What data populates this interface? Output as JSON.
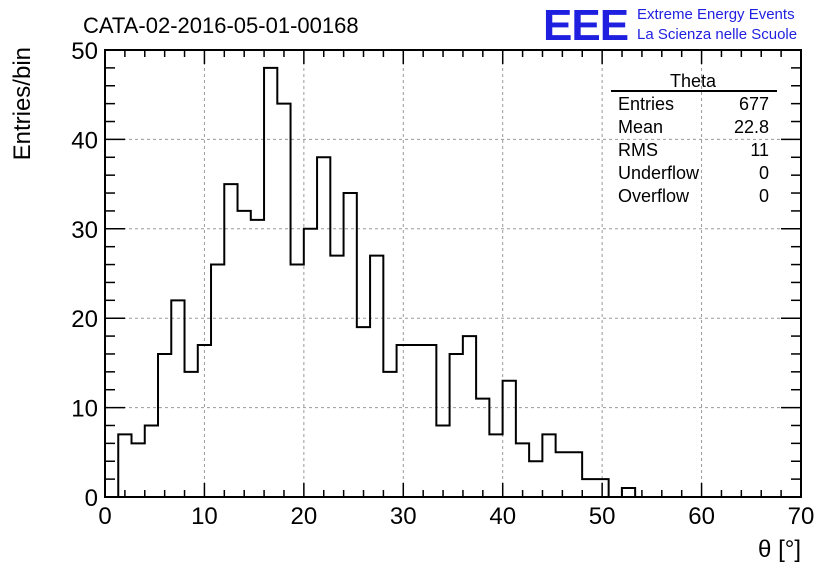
{
  "chart_data": {
    "type": "histogram",
    "title": "CATA-02-2016-05-01-00168",
    "xlabel": "θ [°]",
    "ylabel": "Entries/bin",
    "xlim": [
      0,
      70
    ],
    "ylim": [
      0,
      50
    ],
    "x_ticks": [
      "0",
      "10",
      "20",
      "30",
      "40",
      "50",
      "60",
      "70"
    ],
    "y_ticks": [
      "0",
      "10",
      "20",
      "30",
      "40",
      "50"
    ],
    "grid": true,
    "bin_width": 1.333,
    "bin_start": 1.333,
    "values": [
      7,
      6,
      8,
      16,
      22,
      14,
      17,
      26,
      35,
      32,
      31,
      48,
      44,
      26,
      30,
      38,
      27,
      34,
      19,
      27,
      14,
      17,
      17,
      17,
      8,
      16,
      18,
      11,
      7,
      13,
      6,
      4,
      7,
      5,
      5,
      2,
      2,
      0,
      1
    ]
  },
  "stats_box": {
    "title": "Theta",
    "rows": [
      {
        "label": "Entries",
        "value": "677"
      },
      {
        "label": "Mean",
        "value": "22.8"
      },
      {
        "label": "RMS",
        "value": "11"
      },
      {
        "label": "Underflow",
        "value": "0"
      },
      {
        "label": "Overflow",
        "value": "0"
      }
    ]
  },
  "branding": {
    "logo": "EEE",
    "line1": "Extreme Energy Events",
    "line2": "La Scienza nelle Scuole",
    "color": "#1f1fe0"
  }
}
